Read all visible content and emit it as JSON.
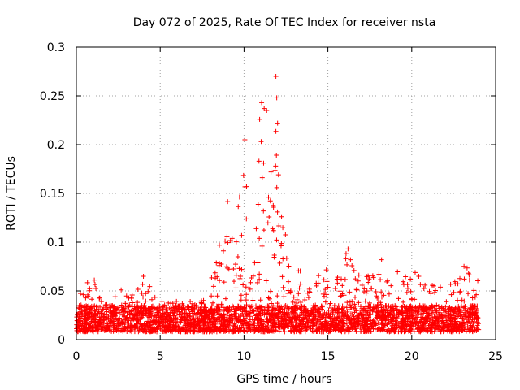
{
  "chart_data": {
    "type": "scatter",
    "title": "Day 072 of 2025, Rate Of TEC Index for receiver nsta",
    "xlabel": "GPS time / hours",
    "ylabel": "ROTI / TECUs",
    "xlim": [
      0,
      25
    ],
    "ylim": [
      0,
      0.3
    ],
    "xticks": [
      0,
      5,
      10,
      15,
      20,
      25
    ],
    "xtick_labels": [
      "0",
      "5",
      "10",
      "15",
      "20",
      "25"
    ],
    "yticks": [
      0,
      0.05,
      0.1,
      0.15,
      0.2,
      0.25,
      0.3
    ],
    "ytick_labels": [
      "0",
      "0.05",
      "0.1",
      "0.15",
      "0.2",
      "0.25",
      "0.3"
    ],
    "grid": true,
    "marker": "plus",
    "color": "#ff0000",
    "series": [
      {
        "name": "ROTI",
        "x_range": [
          0,
          24
        ],
        "baseline_range": [
          0.008,
          0.035
        ],
        "notes": "dense scatter of several thousand points; envelope estimated below",
        "upper_envelope": [
          [
            0.0,
            0.063
          ],
          [
            0.5,
            0.055
          ],
          [
            1.0,
            0.067
          ],
          [
            1.5,
            0.04
          ],
          [
            2.0,
            0.038
          ],
          [
            2.8,
            0.055
          ],
          [
            3.5,
            0.045
          ],
          [
            4.0,
            0.065
          ],
          [
            5.0,
            0.042
          ],
          [
            6.0,
            0.04
          ],
          [
            7.0,
            0.042
          ],
          [
            7.5,
            0.04
          ],
          [
            8.0,
            0.06
          ],
          [
            8.5,
            0.1
          ],
          [
            9.0,
            0.153
          ],
          [
            9.5,
            0.14
          ],
          [
            10.0,
            0.205
          ],
          [
            10.5,
            0.18
          ],
          [
            11.0,
            0.243
          ],
          [
            11.5,
            0.185
          ],
          [
            11.9,
            0.27
          ],
          [
            12.3,
            0.155
          ],
          [
            12.8,
            0.07
          ],
          [
            13.5,
            0.079
          ],
          [
            14.0,
            0.065
          ],
          [
            14.8,
            0.075
          ],
          [
            15.5,
            0.065
          ],
          [
            16.2,
            0.093
          ],
          [
            17.0,
            0.06
          ],
          [
            18.2,
            0.082
          ],
          [
            19.0,
            0.072
          ],
          [
            19.8,
            0.078
          ],
          [
            20.5,
            0.065
          ],
          [
            21.5,
            0.055
          ],
          [
            22.5,
            0.06
          ],
          [
            23.2,
            0.081
          ],
          [
            24.0,
            0.066
          ]
        ],
        "outliers": [
          {
            "x": 11.9,
            "y": 0.27
          },
          {
            "x": 11.95,
            "y": 0.248
          },
          {
            "x": 11.05,
            "y": 0.243
          },
          {
            "x": 11.2,
            "y": 0.237
          },
          {
            "x": 11.35,
            "y": 0.235
          },
          {
            "x": 10.05,
            "y": 0.205
          },
          {
            "x": 12.0,
            "y": 0.222
          },
          {
            "x": 4.0,
            "y": 0.065
          },
          {
            "x": 18.2,
            "y": 0.082
          },
          {
            "x": 16.2,
            "y": 0.093
          }
        ]
      }
    ]
  }
}
